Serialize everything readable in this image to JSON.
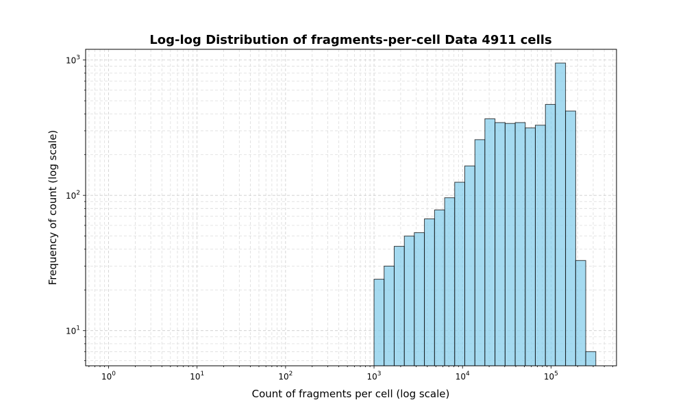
{
  "chart_data": {
    "type": "bar",
    "title": "Log-log Distribution of fragments-per-cell Data 4911 cells",
    "xlabel": "Count of fragments per cell (log scale)",
    "ylabel": "Frequency of count (log scale)",
    "xscale": "log",
    "yscale": "log",
    "xlim": [
      0.55,
      550000
    ],
    "ylim": [
      5.5,
      1200
    ],
    "grid": "both",
    "color": "#87ceeb",
    "edge_color": "#000000",
    "x_ticks": [
      {
        "value": 1,
        "base": "10",
        "exp": "0"
      },
      {
        "value": 10,
        "base": "10",
        "exp": "1"
      },
      {
        "value": 100,
        "base": "10",
        "exp": "2"
      },
      {
        "value": 1000,
        "base": "10",
        "exp": "3"
      },
      {
        "value": 10000,
        "base": "10",
        "exp": "4"
      },
      {
        "value": 100000,
        "base": "10",
        "exp": "5"
      }
    ],
    "y_ticks": [
      {
        "value": 10,
        "base": "10",
        "exp": "1"
      },
      {
        "value": 100,
        "base": "10",
        "exp": "2"
      },
      {
        "value": 1000,
        "base": "10",
        "exp": "3"
      }
    ],
    "bins": [
      {
        "x0": 1000,
        "x1": 1300,
        "count": 24
      },
      {
        "x0": 1300,
        "x1": 1690,
        "count": 30
      },
      {
        "x0": 1690,
        "x1": 2200,
        "count": 42
      },
      {
        "x0": 2200,
        "x1": 2850,
        "count": 50
      },
      {
        "x0": 2850,
        "x1": 3710,
        "count": 53
      },
      {
        "x0": 3710,
        "x1": 4830,
        "count": 67
      },
      {
        "x0": 4830,
        "x1": 6280,
        "count": 78
      },
      {
        "x0": 6280,
        "x1": 8160,
        "count": 96
      },
      {
        "x0": 8160,
        "x1": 10600,
        "count": 125
      },
      {
        "x0": 10600,
        "x1": 13800,
        "count": 165
      },
      {
        "x0": 13800,
        "x1": 17900,
        "count": 258
      },
      {
        "x0": 17900,
        "x1": 23300,
        "count": 368
      },
      {
        "x0": 23300,
        "x1": 30300,
        "count": 345
      },
      {
        "x0": 30300,
        "x1": 39400,
        "count": 340
      },
      {
        "x0": 39400,
        "x1": 51200,
        "count": 345
      },
      {
        "x0": 51200,
        "x1": 66500,
        "count": 315
      },
      {
        "x0": 66500,
        "x1": 86500,
        "count": 330
      },
      {
        "x0": 86500,
        "x1": 112000,
        "count": 470
      },
      {
        "x0": 112000,
        "x1": 146000,
        "count": 950
      },
      {
        "x0": 146000,
        "x1": 190000,
        "count": 420
      },
      {
        "x0": 190000,
        "x1": 247000,
        "count": 33
      },
      {
        "x0": 247000,
        "x1": 321000,
        "count": 7
      }
    ]
  }
}
